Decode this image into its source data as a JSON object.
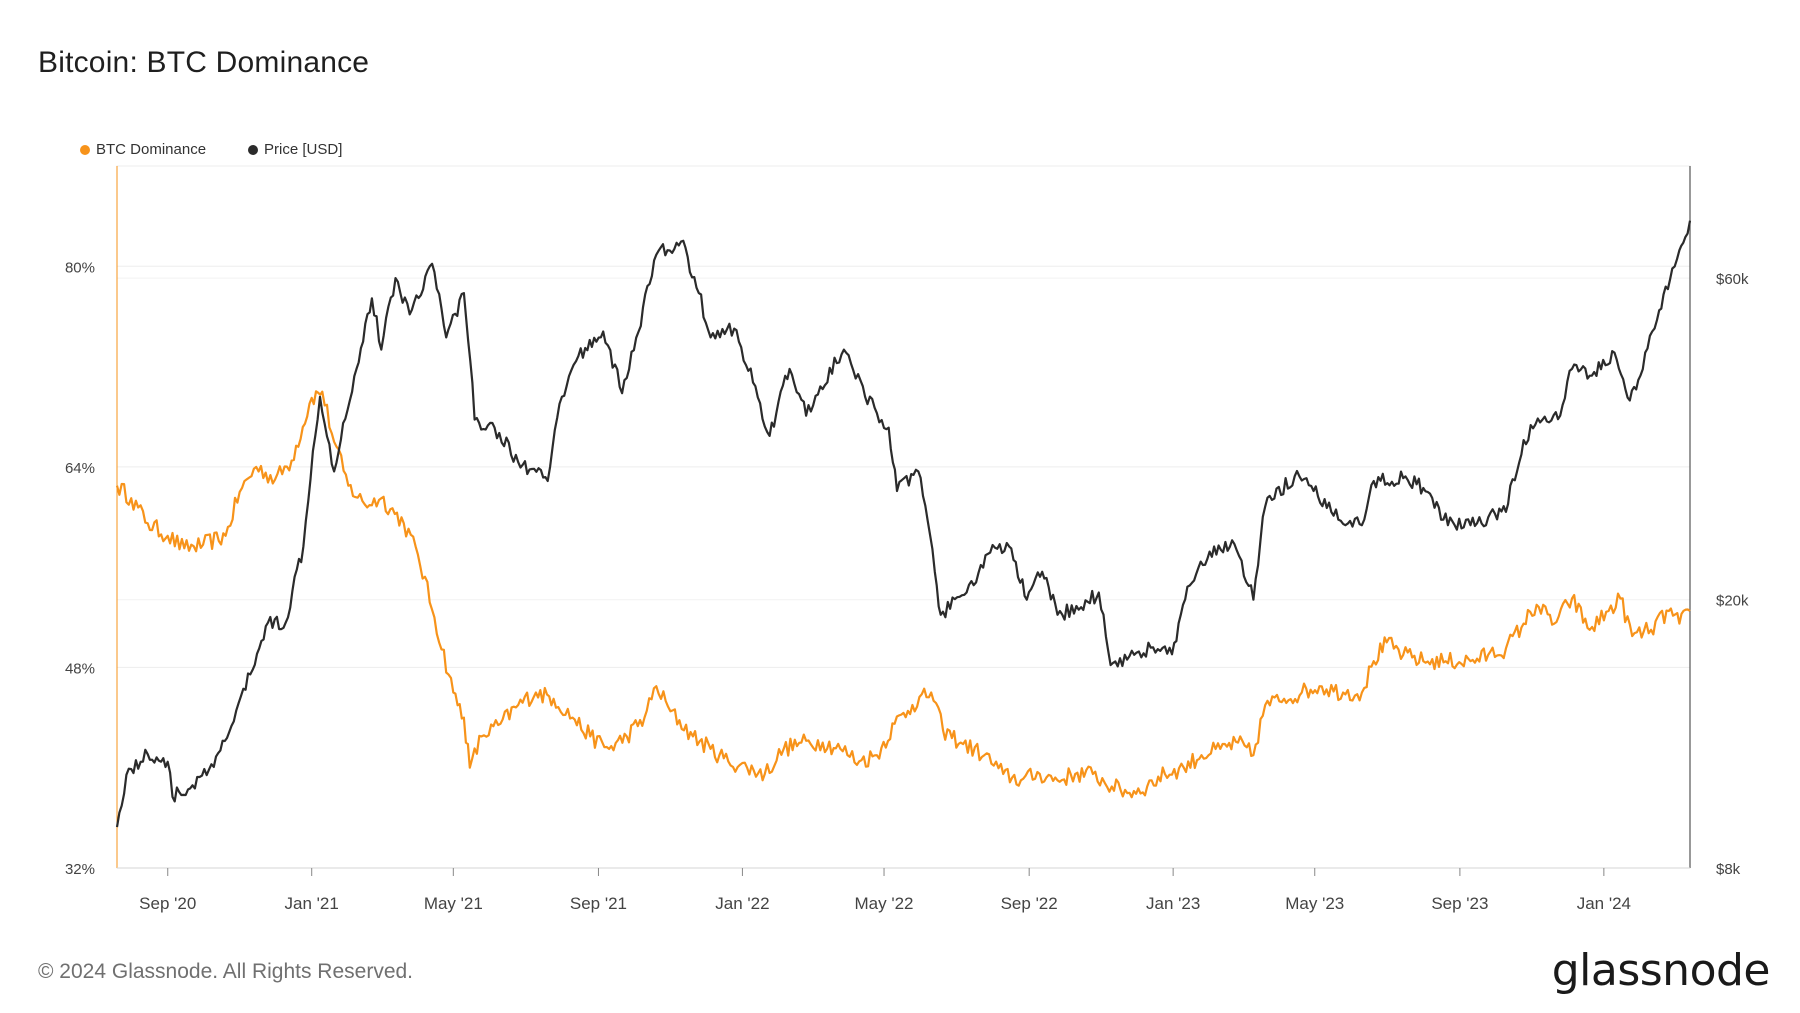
{
  "page": {
    "title": "Bitcoin: BTC Dominance",
    "footer": "© 2024 Glassnode. All Rights Reserved.",
    "logo_text": "glassnode"
  },
  "legend": [
    {
      "label": "BTC Dominance",
      "color": "#f7931a"
    },
    {
      "label": "Price [USD]",
      "color": "#2b2b2b"
    }
  ],
  "chart_data": {
    "type": "line",
    "title": "Bitcoin: BTC Dominance",
    "grid": true,
    "legend_position": "top-left",
    "x_axis": {
      "type": "date",
      "range": [
        "2020-07-20",
        "2024-03-14"
      ],
      "ticks": [
        {
          "date": "2020-09-01",
          "label": "Sep '20"
        },
        {
          "date": "2021-01-01",
          "label": "Jan '21"
        },
        {
          "date": "2021-05-01",
          "label": "May '21"
        },
        {
          "date": "2021-09-01",
          "label": "Sep '21"
        },
        {
          "date": "2022-01-01",
          "label": "Jan '22"
        },
        {
          "date": "2022-05-01",
          "label": "May '22"
        },
        {
          "date": "2022-09-01",
          "label": "Sep '22"
        },
        {
          "date": "2023-01-01",
          "label": "Jan '23"
        },
        {
          "date": "2023-05-01",
          "label": "May '23"
        },
        {
          "date": "2023-09-01",
          "label": "Sep '23"
        },
        {
          "date": "2024-01-01",
          "label": "Jan '24"
        }
      ]
    },
    "y_left": {
      "scale": "linear",
      "range": [
        32,
        88
      ],
      "unit": "%",
      "ticks": [
        {
          "value": 80,
          "label": "80%"
        },
        {
          "value": 64,
          "label": "64%"
        },
        {
          "value": 48,
          "label": "48%"
        },
        {
          "value": 32,
          "label": "32%"
        }
      ]
    },
    "y_right": {
      "scale": "log",
      "range": [
        8000,
        88000
      ],
      "ticks": [
        {
          "value": 60000,
          "label": "$60k"
        },
        {
          "value": 20000,
          "label": "$20k"
        },
        {
          "value": 8000,
          "label": "$8k"
        }
      ]
    },
    "series": [
      {
        "name": "BTC Dominance",
        "axis": "left",
        "color": "#f7931a",
        "points": [
          [
            "2020-07-20",
            62.5
          ],
          [
            "2020-08-01",
            61.5
          ],
          [
            "2020-08-15",
            59.5
          ],
          [
            "2020-09-01",
            58.5
          ],
          [
            "2020-09-15",
            57.5
          ],
          [
            "2020-10-01",
            57.8
          ],
          [
            "2020-10-20",
            58.5
          ],
          [
            "2020-11-01",
            62.0
          ],
          [
            "2020-11-15",
            64.0
          ],
          [
            "2020-12-01",
            63.0
          ],
          [
            "2020-12-15",
            64.5
          ],
          [
            "2021-01-01",
            69.5
          ],
          [
            "2021-01-10",
            70.0
          ],
          [
            "2021-01-20",
            66.0
          ],
          [
            "2021-02-01",
            62.5
          ],
          [
            "2021-02-15",
            61.0
          ],
          [
            "2021-03-01",
            61.5
          ],
          [
            "2021-03-20",
            59.5
          ],
          [
            "2021-04-01",
            57.0
          ],
          [
            "2021-04-15",
            52.0
          ],
          [
            "2021-05-01",
            46.0
          ],
          [
            "2021-05-10",
            44.0
          ],
          [
            "2021-05-15",
            40.0
          ],
          [
            "2021-05-25",
            42.5
          ],
          [
            "2021-06-10",
            43.5
          ],
          [
            "2021-06-25",
            45.0
          ],
          [
            "2021-07-10",
            46.0
          ],
          [
            "2021-07-25",
            45.5
          ],
          [
            "2021-08-10",
            44.0
          ],
          [
            "2021-08-25",
            42.5
          ],
          [
            "2021-09-10",
            41.5
          ],
          [
            "2021-09-25",
            42.5
          ],
          [
            "2021-10-10",
            44.0
          ],
          [
            "2021-10-20",
            46.5
          ],
          [
            "2021-11-01",
            44.5
          ],
          [
            "2021-11-20",
            42.5
          ],
          [
            "2021-12-05",
            41.5
          ],
          [
            "2021-12-20",
            40.5
          ],
          [
            "2022-01-05",
            40.0
          ],
          [
            "2022-01-20",
            39.5
          ],
          [
            "2022-02-05",
            41.5
          ],
          [
            "2022-02-20",
            42.0
          ],
          [
            "2022-03-10",
            42.0
          ],
          [
            "2022-03-25",
            41.5
          ],
          [
            "2022-04-10",
            40.5
          ],
          [
            "2022-04-25",
            41.0
          ],
          [
            "2022-05-10",
            43.5
          ],
          [
            "2022-05-25",
            45.0
          ],
          [
            "2022-06-10",
            46.0
          ],
          [
            "2022-06-20",
            43.0
          ],
          [
            "2022-07-05",
            42.0
          ],
          [
            "2022-07-25",
            41.0
          ],
          [
            "2022-08-10",
            39.5
          ],
          [
            "2022-08-25",
            39.0
          ],
          [
            "2022-09-10",
            39.5
          ],
          [
            "2022-09-25",
            39.0
          ],
          [
            "2022-10-10",
            39.5
          ],
          [
            "2022-10-25",
            39.5
          ],
          [
            "2022-11-10",
            38.5
          ],
          [
            "2022-11-25",
            38.0
          ],
          [
            "2022-12-10",
            38.5
          ],
          [
            "2022-12-25",
            39.5
          ],
          [
            "2023-01-10",
            40.0
          ],
          [
            "2023-01-25",
            41.0
          ],
          [
            "2023-02-10",
            41.5
          ],
          [
            "2023-02-25",
            42.0
          ],
          [
            "2023-03-10",
            41.0
          ],
          [
            "2023-03-20",
            45.0
          ],
          [
            "2023-04-05",
            45.5
          ],
          [
            "2023-04-20",
            46.0
          ],
          [
            "2023-05-05",
            46.5
          ],
          [
            "2023-05-25",
            46.0
          ],
          [
            "2023-06-10",
            46.0
          ],
          [
            "2023-06-20",
            48.5
          ],
          [
            "2023-07-01",
            50.0
          ],
          [
            "2023-07-15",
            49.0
          ],
          [
            "2023-08-01",
            48.5
          ],
          [
            "2023-08-20",
            48.5
          ],
          [
            "2023-09-10",
            48.5
          ],
          [
            "2023-09-25",
            49.0
          ],
          [
            "2023-10-10",
            49.5
          ],
          [
            "2023-10-25",
            51.5
          ],
          [
            "2023-11-05",
            53.0
          ],
          [
            "2023-11-20",
            51.5
          ],
          [
            "2023-12-05",
            53.5
          ],
          [
            "2023-12-20",
            51.0
          ],
          [
            "2024-01-05",
            52.5
          ],
          [
            "2024-01-15",
            53.5
          ],
          [
            "2024-01-25",
            50.5
          ],
          [
            "2024-02-10",
            51.0
          ],
          [
            "2024-02-25",
            52.5
          ],
          [
            "2024-03-05",
            51.5
          ],
          [
            "2024-03-14",
            52.5
          ]
        ]
      },
      {
        "name": "Price [USD]",
        "axis": "right",
        "color": "#2b2b2b",
        "points": [
          [
            "2020-07-20",
            9200
          ],
          [
            "2020-07-28",
            11000
          ],
          [
            "2020-08-15",
            11800
          ],
          [
            "2020-09-01",
            11500
          ],
          [
            "2020-09-05",
            10200
          ],
          [
            "2020-09-20",
            10500
          ],
          [
            "2020-10-10",
            11300
          ],
          [
            "2020-10-25",
            13000
          ],
          [
            "2020-11-10",
            15500
          ],
          [
            "2020-11-25",
            18500
          ],
          [
            "2020-12-10",
            18500
          ],
          [
            "2020-12-25",
            24000
          ],
          [
            "2021-01-08",
            40000
          ],
          [
            "2021-01-20",
            31000
          ],
          [
            "2021-02-08",
            44000
          ],
          [
            "2021-02-21",
            56000
          ],
          [
            "2021-03-01",
            47000
          ],
          [
            "2021-03-13",
            60000
          ],
          [
            "2021-03-25",
            53000
          ],
          [
            "2021-04-13",
            63000
          ],
          [
            "2021-04-25",
            49000
          ],
          [
            "2021-05-10",
            57000
          ],
          [
            "2021-05-19",
            37000
          ],
          [
            "2021-06-05",
            36000
          ],
          [
            "2021-06-25",
            32000
          ],
          [
            "2021-07-20",
            30000
          ],
          [
            "2021-08-01",
            40000
          ],
          [
            "2021-08-15",
            46000
          ],
          [
            "2021-09-05",
            50000
          ],
          [
            "2021-09-21",
            40500
          ],
          [
            "2021-10-05",
            50000
          ],
          [
            "2021-10-20",
            65000
          ],
          [
            "2021-11-10",
            68000
          ],
          [
            "2021-11-25",
            57000
          ],
          [
            "2021-12-05",
            49000
          ],
          [
            "2021-12-25",
            50500
          ],
          [
            "2022-01-10",
            42000
          ],
          [
            "2022-01-24",
            35000
          ],
          [
            "2022-02-10",
            44000
          ],
          [
            "2022-02-24",
            37500
          ],
          [
            "2022-03-28",
            47000
          ],
          [
            "2022-04-15",
            40000
          ],
          [
            "2022-05-05",
            36000
          ],
          [
            "2022-05-12",
            29000
          ],
          [
            "2022-05-30",
            31000
          ],
          [
            "2022-06-13",
            22000
          ],
          [
            "2022-06-18",
            19000
          ],
          [
            "2022-07-10",
            20500
          ],
          [
            "2022-07-30",
            23500
          ],
          [
            "2022-08-15",
            24000
          ],
          [
            "2022-08-30",
            20000
          ],
          [
            "2022-09-12",
            22000
          ],
          [
            "2022-09-25",
            19000
          ],
          [
            "2022-10-15",
            19500
          ],
          [
            "2022-10-30",
            20500
          ],
          [
            "2022-11-09",
            16000
          ],
          [
            "2022-11-25",
            16500
          ],
          [
            "2022-12-15",
            17000
          ],
          [
            "2022-12-31",
            16600
          ],
          [
            "2023-01-15",
            21000
          ],
          [
            "2023-01-30",
            23000
          ],
          [
            "2023-02-20",
            24500
          ],
          [
            "2023-03-10",
            20000
          ],
          [
            "2023-03-20",
            27500
          ],
          [
            "2023-04-14",
            30500
          ],
          [
            "2023-04-30",
            29000
          ],
          [
            "2023-05-15",
            27000
          ],
          [
            "2023-06-10",
            25800
          ],
          [
            "2023-06-20",
            30000
          ],
          [
            "2023-07-15",
            30300
          ],
          [
            "2023-08-01",
            29300
          ],
          [
            "2023-08-18",
            26300
          ],
          [
            "2023-09-10",
            25800
          ],
          [
            "2023-09-25",
            26500
          ],
          [
            "2023-10-10",
            27000
          ],
          [
            "2023-10-25",
            34500
          ],
          [
            "2023-11-10",
            37000
          ],
          [
            "2023-11-25",
            37500
          ],
          [
            "2023-12-05",
            44000
          ],
          [
            "2023-12-20",
            43000
          ],
          [
            "2024-01-10",
            46500
          ],
          [
            "2024-01-23",
            39500
          ],
          [
            "2024-02-01",
            43000
          ],
          [
            "2024-02-15",
            52000
          ],
          [
            "2024-02-28",
            62000
          ],
          [
            "2024-03-05",
            66000
          ],
          [
            "2024-03-10",
            69000
          ],
          [
            "2024-03-14",
            73000
          ]
        ]
      }
    ]
  }
}
